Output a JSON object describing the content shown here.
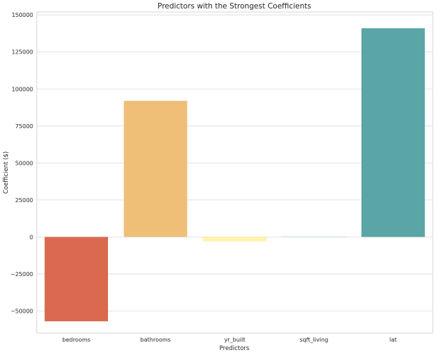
{
  "chart_data": {
    "type": "bar",
    "title": "Predictors with the Strongest Coefficients",
    "xlabel": "Predictors",
    "ylabel": "Coefficient ($)",
    "categories": [
      "bedrooms",
      "bathrooms",
      "yr_built",
      "sqft_living",
      "lat"
    ],
    "values": [
      -57000,
      92000,
      -3000,
      300,
      141000
    ],
    "colors": [
      "#d9694f",
      "#efbf78",
      "#fff3a8",
      "#a9d3b6",
      "#5aa5a6"
    ],
    "ylim": [
      -65000,
      152000
    ],
    "yticks": [
      -50000,
      -25000,
      0,
      25000,
      50000,
      75000,
      100000,
      125000,
      150000
    ],
    "ytick_labels": [
      "−50000",
      "−25000",
      "0",
      "25000",
      "50000",
      "75000",
      "100000",
      "125000",
      "150000"
    ],
    "grid": true,
    "grid_axis": "y",
    "legend": false
  }
}
